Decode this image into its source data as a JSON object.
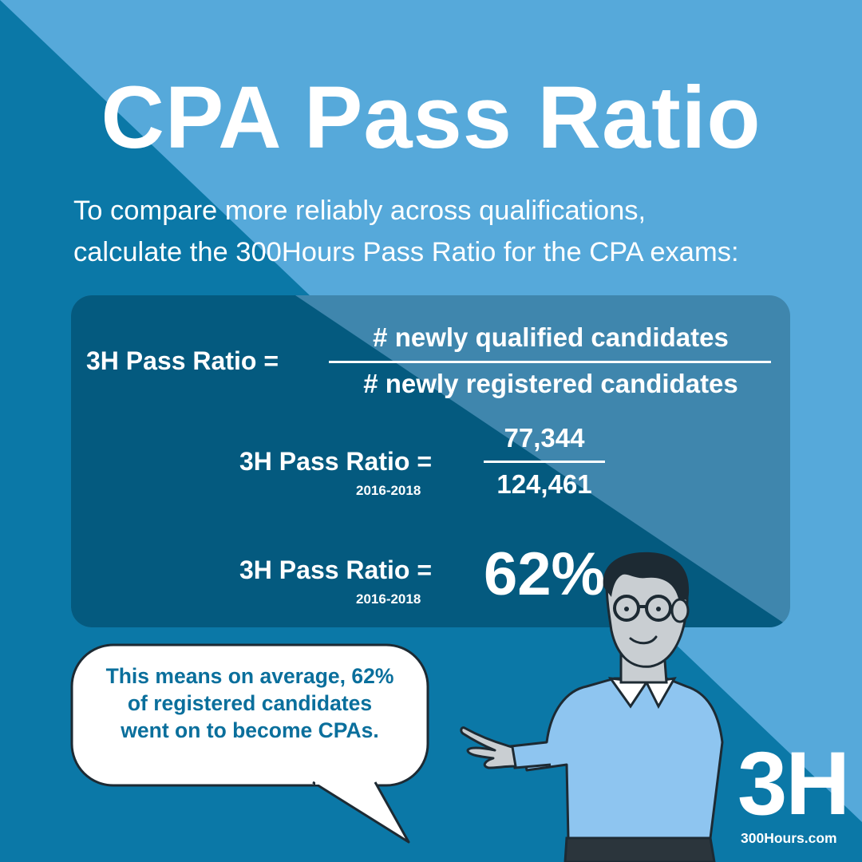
{
  "title": "CPA Pass Ratio",
  "subtitle": {
    "line1": "To compare more reliably across qualifications,",
    "line2": "calculate the 300Hours Pass Ratio for the CPA exams:"
  },
  "formula": {
    "label": "3H Pass Ratio =",
    "numerator": "# newly qualified candidates",
    "denominator": "# newly registered candidates"
  },
  "calculation": {
    "label": "3H Pass Ratio =",
    "years": "2016-2018",
    "numerator": "77,344",
    "denominator": "124,461"
  },
  "result": {
    "label": "3H Pass Ratio =",
    "years": "2016-2018",
    "value": "62%"
  },
  "speech": {
    "line1": "This means on average, 62%",
    "line2": "of registered candidates",
    "line3": "went on to become CPAs."
  },
  "brand": {
    "logo": "3H",
    "website": "300Hours.com"
  },
  "colors": {
    "light_blue": "#56a9da",
    "dark_blue": "#0b78a7",
    "panel_dark": "#045a7f",
    "panel_light": "#3f86ad",
    "bubble_text": "#0a6f9c",
    "shirt": "#8ec5f0"
  }
}
